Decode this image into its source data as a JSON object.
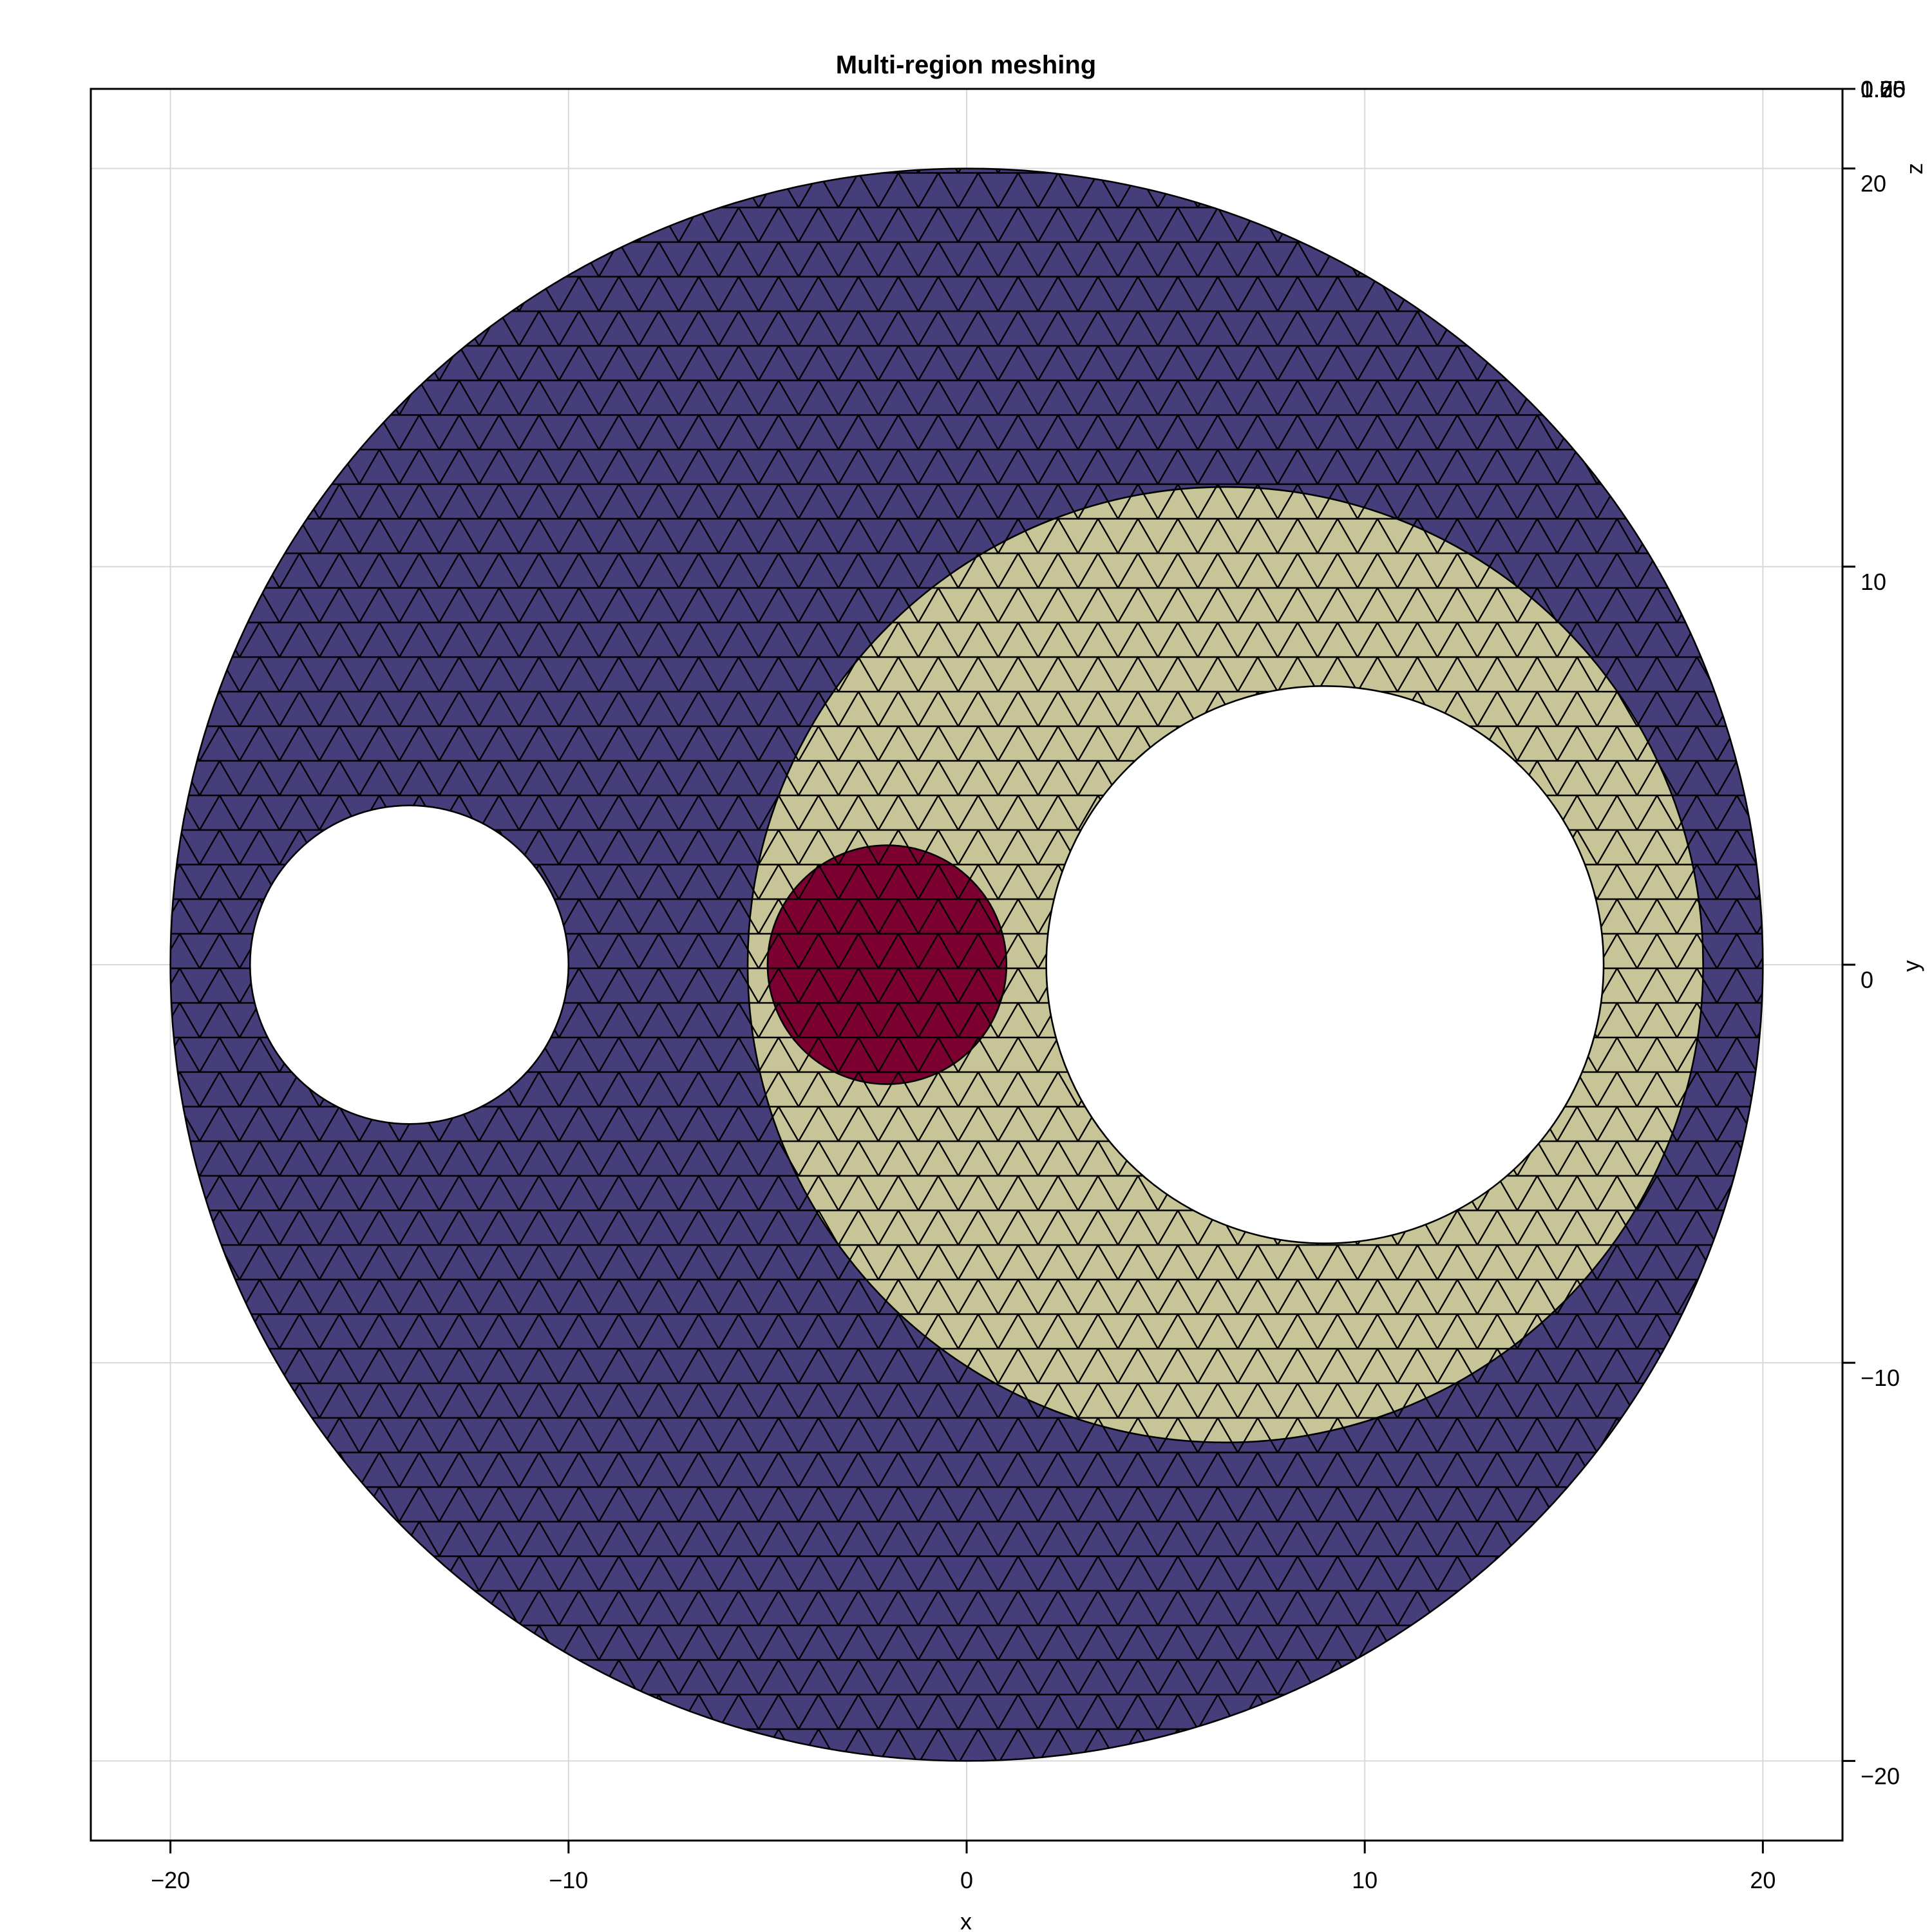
{
  "chart_data": {
    "type": "mesh",
    "title": "Multi-region meshing",
    "xlabel": "x",
    "ylabel": "y",
    "zlabel": "z",
    "xlim": [
      -22,
      22
    ],
    "ylim": [
      -22,
      22
    ],
    "xticks": [
      -20,
      -10,
      0,
      10,
      20
    ],
    "yticks": [
      -20,
      -10,
      0,
      10,
      20
    ],
    "xtick_labels": [
      "−20",
      "−10",
      "0",
      "10",
      "20"
    ],
    "ytick_labels": [
      "−20",
      "−10",
      "0",
      "10",
      "20"
    ],
    "ztick_labels": [
      "0.00",
      "0.25",
      "0.50",
      "0.75",
      "1.00"
    ],
    "grid": true,
    "mesh_element": "triangle",
    "regions": [
      {
        "shape": "disk",
        "center": [
          0,
          0
        ],
        "radius": 20,
        "color": "#463e7a"
      },
      {
        "shape": "disk",
        "center": [
          6.5,
          0
        ],
        "radius": 12,
        "color": "#c7c597"
      },
      {
        "shape": "disk",
        "center": [
          -2,
          0
        ],
        "radius": 3,
        "color": "#7c0030"
      }
    ],
    "holes": [
      {
        "center": [
          -14,
          0
        ],
        "radius": 4
      },
      {
        "center": [
          9,
          0
        ],
        "radius": 7
      }
    ]
  }
}
